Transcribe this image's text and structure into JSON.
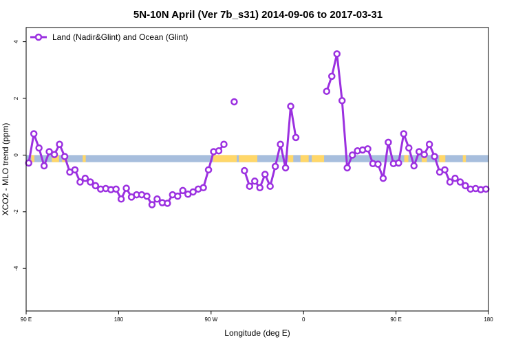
{
  "chart_data": {
    "type": "line",
    "title": "5N-10N April (Ver 7b_s31)   2014-09-06 to 2017-03-31",
    "xlabel": "Longitude (deg E)",
    "ylabel": "XCO2 - MLO trend (ppm)",
    "xlim": [
      90,
      540
    ],
    "ylim": [
      -5.5,
      4.5
    ],
    "x_ticks": [
      {
        "value": 90,
        "label": "90 E"
      },
      {
        "value": 180,
        "label": "180"
      },
      {
        "value": 270,
        "label": "90 W"
      },
      {
        "value": 360,
        "label": "0"
      },
      {
        "value": 450,
        "label": "90 E"
      },
      {
        "value": 540,
        "label": "180"
      }
    ],
    "y_ticks": [
      {
        "value": 4,
        "label": "4"
      },
      {
        "value": 2,
        "label": "2"
      },
      {
        "value": 0,
        "label": "0"
      },
      {
        "value": -2,
        "label": "-2"
      },
      {
        "value": -4,
        "label": "-4"
      }
    ],
    "legend": {
      "position": "top-left",
      "entries": [
        "Land (Nadir&Glint) and Ocean (Glint)"
      ]
    },
    "grid": false,
    "colors": {
      "series": "#9b30e0",
      "ocean_band": "#a7bedd",
      "land_band": "#ffd769"
    },
    "surface_band": {
      "y_range": [
        -0.25,
        0
      ],
      "land_segments": [
        [
          95,
          98
        ],
        [
          115,
          122
        ],
        [
          125,
          130
        ],
        [
          145,
          148
        ],
        [
          272,
          295
        ],
        [
          297,
          315
        ],
        [
          345,
          350
        ],
        [
          357,
          365
        ],
        [
          368,
          380
        ],
        [
          458,
          462
        ],
        [
          475,
          480
        ],
        [
          492,
          498
        ],
        [
          515,
          518
        ]
      ]
    },
    "series": [
      {
        "name": "Land (Nadir&Glint) and Ocean (Glint)",
        "segments": [
          {
            "x": [
              92.5,
              97.5,
              102.5,
              107.5,
              112.5,
              117.5,
              122.5,
              127.5,
              132.5,
              137.5,
              142.5,
              147.5,
              152.5,
              157.5,
              162.5,
              167.5,
              172.5,
              177.5,
              182.5,
              187.5,
              192.5,
              197.5,
              202.5,
              207.5,
              212.5,
              217.5,
              222.5,
              227.5,
              232.5,
              237.5,
              242.5,
              247.5,
              252.5,
              257.5,
              262.5,
              267.5,
              272.5,
              277.5,
              282.5
            ],
            "y": [
              -0.28,
              0.75,
              0.25,
              -0.38,
              0.12,
              0.02,
              0.38,
              -0.05,
              -0.6,
              -0.52,
              -0.95,
              -0.82,
              -0.95,
              -1.08,
              -1.2,
              -1.18,
              -1.22,
              -1.2,
              -1.55,
              -1.17,
              -1.48,
              -1.4,
              -1.4,
              -1.45,
              -1.75,
              -1.55,
              -1.68,
              -1.7,
              -1.4,
              -1.45,
              -1.25,
              -1.38,
              -1.3,
              -1.2,
              -1.15,
              -0.52,
              0.12,
              0.15,
              0.38
            ]
          },
          {
            "x": [
              292.5
            ],
            "y": [
              1.88
            ]
          },
          {
            "x": [
              302.5,
              307.5,
              312.5,
              317.5,
              322.5,
              327.5,
              332.5,
              337.5,
              342.5,
              347.5,
              352.5,
              357.5
            ],
            "y": [
              -0.55,
              -1.1,
              -0.92,
              -1.15,
              -0.68,
              -1.1,
              -0.4,
              0.38,
              -0.45,
              1.72,
              0.62,
              null
            ]
          },
          {
            "x": [
              382.5,
              387.5,
              392.5,
              397.5,
              402.5,
              407.5,
              412.5,
              417.5,
              422.5,
              427.5,
              432.5,
              437.5,
              442.5,
              447.5,
              452.5,
              457.5,
              462.5,
              467.5,
              472.5,
              477.5,
              482.5,
              487.5,
              492.5,
              497.5,
              502.5,
              507.5,
              512.5,
              517.5,
              522.5,
              527.5,
              532.5,
              537.5,
              540
            ],
            "y": [
              2.25,
              2.78,
              3.57,
              1.92,
              -0.45,
              0.0,
              0.15,
              0.18,
              0.22,
              -0.3,
              -0.32,
              -0.82,
              0.45,
              -0.3,
              -0.28,
              0.75,
              0.25,
              -0.38,
              0.12,
              0.02,
              0.38,
              -0.05,
              -0.6,
              -0.52,
              -0.95,
              -0.82,
              -0.95,
              -1.08,
              -1.2,
              -1.18,
              -1.22,
              -1.2,
              -1.18
            ]
          }
        ]
      }
    ]
  }
}
